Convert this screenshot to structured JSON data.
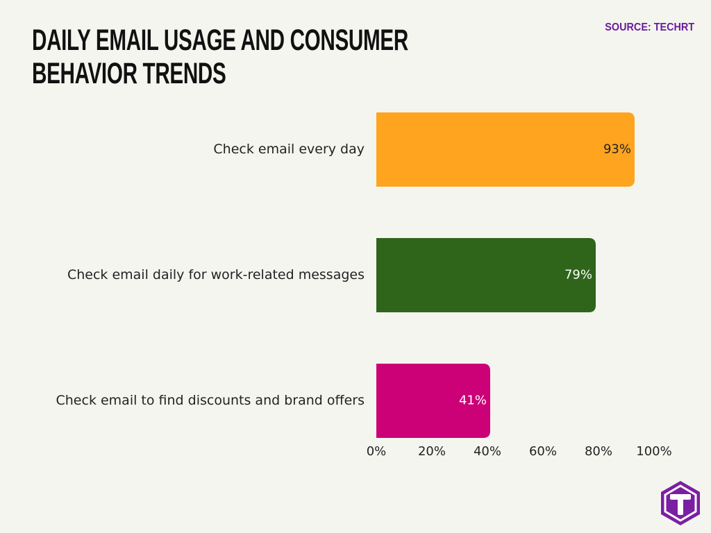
{
  "chart_data": {
    "type": "hbar",
    "title": "DAILY EMAIL USAGE AND CONSUMER BEHAVIOR TRENDS",
    "source": "SOURCE: TECHRT",
    "categories": [
      "Check email every day",
      "Check email daily for work-related messages",
      "Check email to find discounts and brand offers"
    ],
    "values": [
      93,
      79,
      41
    ],
    "value_labels": [
      "93%",
      "79%",
      "41%"
    ],
    "colors": [
      "#FFA41F",
      "#2F651A",
      "#CC0077"
    ],
    "xlim": [
      0,
      100
    ],
    "xticks": [
      {
        "value": 0,
        "label": "0%"
      },
      {
        "value": 20,
        "label": "20%"
      },
      {
        "value": 40,
        "label": "40%"
      },
      {
        "value": 60,
        "label": "60%"
      },
      {
        "value": 80,
        "label": "80%"
      },
      {
        "value": 100,
        "label": "100%"
      }
    ]
  }
}
